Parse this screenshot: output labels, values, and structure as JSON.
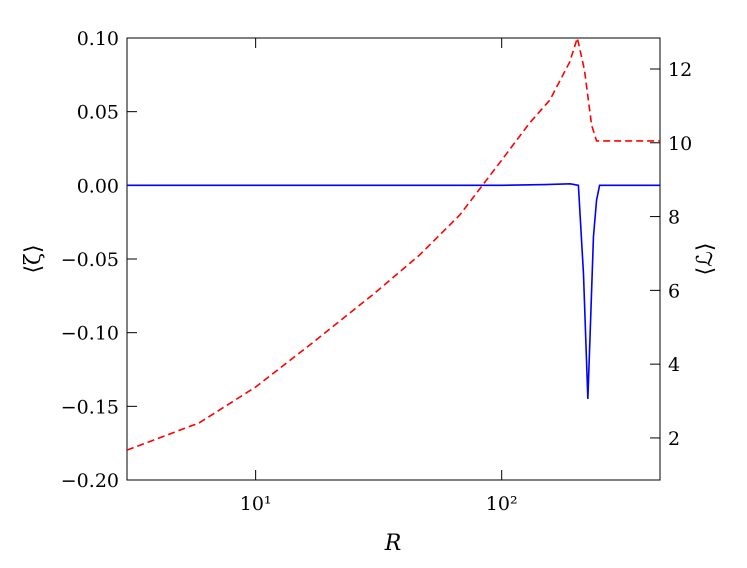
{
  "chart_data": {
    "type": "line",
    "x_label": "R",
    "y_label": "⟨ζ⟩",
    "y2_label": "⟨ℒ⟩",
    "xscale": "log",
    "xlim": [
      3,
      440
    ],
    "xticks": [
      {
        "value": 10,
        "label": "10¹"
      },
      {
        "value": 100,
        "label": "10²"
      }
    ],
    "ylim": [
      -0.2,
      0.1
    ],
    "yticks": [
      {
        "value": -0.2,
        "label": "−0.20"
      },
      {
        "value": -0.15,
        "label": "−0.15"
      },
      {
        "value": -0.1,
        "label": "−0.10"
      },
      {
        "value": -0.05,
        "label": "−0.05"
      },
      {
        "value": 0,
        "label": "0.00"
      },
      {
        "value": 0.05,
        "label": "0.05"
      },
      {
        "value": 0.1,
        "label": "0.10"
      }
    ],
    "y2lim": [
      0.86,
      12.84
    ],
    "y2ticks": [
      2,
      4,
      6,
      8,
      10,
      12
    ],
    "grid": false,
    "series": [
      {
        "color": "#0000ff",
        "style": "solid",
        "axis": "y",
        "x": [
          3,
          50,
          100,
          150,
          190,
          205,
          215,
          224,
          230,
          236,
          243,
          250,
          440
        ],
        "values": [
          0,
          0,
          0,
          0.0005,
          0.001,
          0,
          -0.06,
          -0.145,
          -0.09,
          -0.035,
          -0.01,
          0,
          0
        ]
      },
      {
        "color": "#ff0000",
        "style": "dashed",
        "axis": "y2",
        "x": [
          3,
          5.9,
          10,
          16.6,
          29.9,
          46.4,
          67.5,
          100,
          130,
          157,
          189,
          203,
          217,
          232,
          243,
          300,
          440
        ],
        "values": [
          1.67,
          2.41,
          3.38,
          4.52,
          5.88,
          6.96,
          8.04,
          9.53,
          10.54,
          11.16,
          12.19,
          12.84,
          11.97,
          10.48,
          10.05,
          10.05,
          10.05
        ]
      }
    ]
  }
}
